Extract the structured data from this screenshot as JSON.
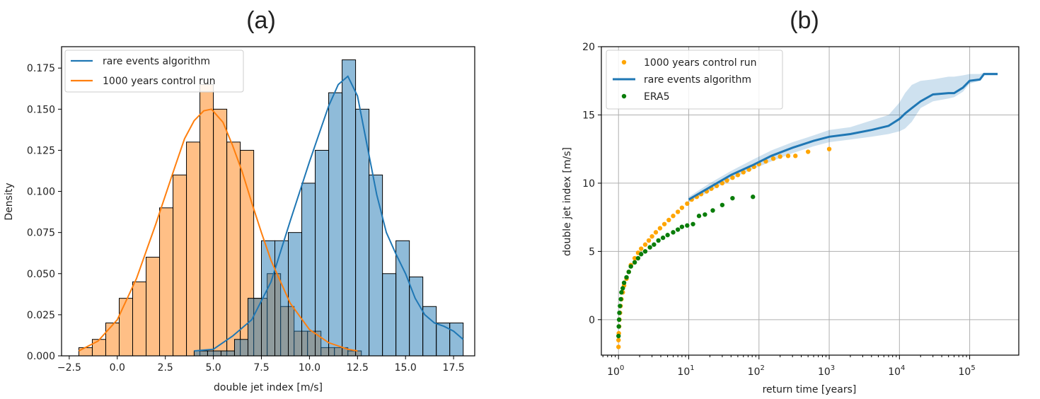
{
  "chart_data": [
    {
      "type": "histogram",
      "panel_label": "(a)",
      "xlabel": "double jet index [m/s]",
      "ylabel": "Density",
      "xlim": [
        -2.9,
        18.6
      ],
      "ylim": [
        0,
        0.188
      ],
      "xticks": [
        -2.5,
        0.0,
        2.5,
        5.0,
        7.5,
        10.0,
        12.5,
        15.0,
        17.5
      ],
      "xtick_labels": [
        "−2.5",
        "0.0",
        "2.5",
        "5.0",
        "7.5",
        "10.0",
        "12.5",
        "15.0",
        "17.5"
      ],
      "yticks": [
        0,
        0.025,
        0.05,
        0.075,
        0.1,
        0.125,
        0.15,
        0.175
      ],
      "ytick_labels": [
        "0.000",
        "0.025",
        "0.050",
        "0.075",
        "0.100",
        "0.125",
        "0.150",
        "0.175"
      ],
      "grid": false,
      "legend_position": "upper-left",
      "series": [
        {
          "name": "rare events algorithm",
          "color": "#1f77b4",
          "bin_left": [
            4.0,
            4.7,
            5.4,
            6.1,
            6.8,
            7.5,
            8.2,
            8.9,
            9.6,
            10.3,
            11.0,
            11.7,
            12.4,
            13.1,
            13.8,
            14.5,
            15.2,
            15.9,
            16.6,
            17.3
          ],
          "bin_width": 0.7,
          "density": [
            0.003,
            0.003,
            0.003,
            0.01,
            0.035,
            0.07,
            0.07,
            0.075,
            0.105,
            0.125,
            0.16,
            0.18,
            0.15,
            0.11,
            0.05,
            0.07,
            0.048,
            0.03,
            0.02,
            0.02
          ],
          "kde_x": [
            4.0,
            5.0,
            6.0,
            7.0,
            8.0,
            9.0,
            10.0,
            11.0,
            11.5,
            12.0,
            12.5,
            13.0,
            13.5,
            14.0,
            14.5,
            15.0,
            15.5,
            16.0,
            16.5,
            17.0,
            17.5,
            18.0
          ],
          "kde_y": [
            0.003,
            0.004,
            0.012,
            0.022,
            0.045,
            0.082,
            0.118,
            0.152,
            0.165,
            0.17,
            0.158,
            0.128,
            0.098,
            0.075,
            0.062,
            0.05,
            0.035,
            0.025,
            0.02,
            0.018,
            0.015,
            0.01
          ]
        },
        {
          "name": "1000 years control run",
          "color": "#ff7f0e",
          "bin_left": [
            -2.0,
            -1.3,
            -0.6,
            0.1,
            0.8,
            1.5,
            2.2,
            2.9,
            3.6,
            4.3,
            5.0,
            5.7,
            6.4,
            7.1,
            7.8,
            8.5,
            9.2,
            9.9,
            10.6,
            11.3,
            12.0
          ],
          "bin_width": 0.7,
          "density": [
            0.005,
            0.01,
            0.02,
            0.035,
            0.045,
            0.06,
            0.09,
            0.11,
            0.13,
            0.165,
            0.15,
            0.13,
            0.125,
            0.035,
            0.05,
            0.03,
            0.015,
            0.015,
            0.005,
            0.005,
            0.003
          ],
          "kde_x": [
            -2.0,
            -1.0,
            0.0,
            1.0,
            2.0,
            3.0,
            3.5,
            4.0,
            4.5,
            4.9,
            5.5,
            6.0,
            6.5,
            7.0,
            7.5,
            8.0,
            9.0,
            10.0,
            11.0,
            12.0,
            12.5
          ],
          "kde_y": [
            0.003,
            0.009,
            0.022,
            0.047,
            0.08,
            0.115,
            0.132,
            0.143,
            0.149,
            0.15,
            0.142,
            0.128,
            0.112,
            0.093,
            0.075,
            0.058,
            0.032,
            0.016,
            0.008,
            0.004,
            0.003
          ]
        }
      ]
    },
    {
      "type": "line",
      "panel_label": "(b)",
      "xlabel": "return time [years]",
      "ylabel": "double jet index [m/s]",
      "x_scale": "log",
      "xlim": [
        0.57,
        500000
      ],
      "ylim": [
        -2.6,
        20
      ],
      "xticks": [
        1,
        10,
        100,
        1000,
        10000,
        100000
      ],
      "xtick_labels": [
        {
          "base": "10",
          "exp": "0"
        },
        {
          "base": "10",
          "exp": "1"
        },
        {
          "base": "10",
          "exp": "2"
        },
        {
          "base": "10",
          "exp": "3"
        },
        {
          "base": "10",
          "exp": "4"
        },
        {
          "base": "10",
          "exp": "5"
        }
      ],
      "yticks": [
        0,
        5,
        10,
        15,
        20
      ],
      "ytick_labels": [
        "0",
        "5",
        "10",
        "15",
        "20"
      ],
      "grid": true,
      "legend_position": "upper-left",
      "series": [
        {
          "name": "1000 years control run",
          "color": "#ffa500",
          "marker": "dot",
          "x": [
            1.0,
            1.0,
            1.01,
            1.02,
            1.03,
            1.05,
            1.07,
            1.1,
            1.15,
            1.2,
            1.3,
            1.4,
            1.5,
            1.7,
            1.9,
            2.1,
            2.4,
            2.7,
            3.0,
            3.4,
            3.9,
            4.5,
            5.2,
            6.0,
            7.0,
            8.0,
            9.5,
            11,
            13,
            15,
            18,
            21,
            25,
            30,
            35,
            42,
            50,
            60,
            72,
            85,
            100,
            125,
            160,
            200,
            260,
            330,
            500,
            1000
          ],
          "y": [
            -2.0,
            -1.5,
            -1.0,
            -0.5,
            0.0,
            0.5,
            1.0,
            1.5,
            2.0,
            2.5,
            3.0,
            3.5,
            4.0,
            4.5,
            4.9,
            5.2,
            5.5,
            5.8,
            6.1,
            6.4,
            6.7,
            7.0,
            7.3,
            7.6,
            7.9,
            8.2,
            8.5,
            8.8,
            9.0,
            9.2,
            9.4,
            9.6,
            9.8,
            10.0,
            10.2,
            10.4,
            10.6,
            10.8,
            11.0,
            11.2,
            11.4,
            11.6,
            11.8,
            11.95,
            12.0,
            12.0,
            12.3,
            12.5
          ]
        },
        {
          "name": "rare events algorithm",
          "color": "#1f77b4",
          "marker": "line",
          "x": [
            10,
            20,
            40,
            80,
            150,
            300,
            600,
            1000,
            2000,
            4000,
            7000,
            10000,
            12000,
            15000,
            20000,
            30000,
            50000,
            60000,
            80000,
            100000,
            140000,
            160000,
            250000
          ],
          "y": [
            8.8,
            9.7,
            10.6,
            11.3,
            12.0,
            12.6,
            13.1,
            13.4,
            13.6,
            13.9,
            14.2,
            14.7,
            15.1,
            15.5,
            16.0,
            16.5,
            16.6,
            16.6,
            17.0,
            17.5,
            17.6,
            18.0,
            18.0
          ],
          "band_lower": [
            8.6,
            9.4,
            10.3,
            11.0,
            11.6,
            12.2,
            12.7,
            13.0,
            13.2,
            13.4,
            13.6,
            13.8,
            14.0,
            14.5,
            15.5,
            16.0,
            16.2,
            16.3,
            16.7,
            17.3,
            17.5,
            17.9,
            17.9
          ],
          "band_upper": [
            9.0,
            10.0,
            10.9,
            11.7,
            12.4,
            13.0,
            13.5,
            13.9,
            14.1,
            14.6,
            15.0,
            15.9,
            16.6,
            17.2,
            17.5,
            17.6,
            17.8,
            17.8,
            17.9,
            18.0,
            18.0,
            18.1,
            18.1
          ]
        },
        {
          "name": "ERA5",
          "color": "#0a7d0a",
          "marker": "dot",
          "x": [
            1.0,
            1.01,
            1.02,
            1.03,
            1.05,
            1.08,
            1.1,
            1.15,
            1.2,
            1.3,
            1.4,
            1.5,
            1.7,
            1.9,
            2.1,
            2.4,
            2.8,
            3.2,
            3.7,
            4.3,
            5.0,
            6.0,
            7.0,
            8.0,
            9.5,
            11.5,
            14,
            17,
            22,
            30,
            42,
            82
          ],
          "y": [
            -1.2,
            -0.5,
            0.0,
            0.5,
            1.0,
            1.5,
            2.0,
            2.3,
            2.7,
            3.1,
            3.5,
            3.9,
            4.2,
            4.5,
            4.8,
            5.0,
            5.3,
            5.5,
            5.8,
            6.0,
            6.2,
            6.4,
            6.6,
            6.8,
            6.9,
            7.0,
            7.6,
            7.7,
            8.0,
            8.4,
            8.9,
            9.0
          ]
        }
      ]
    }
  ]
}
